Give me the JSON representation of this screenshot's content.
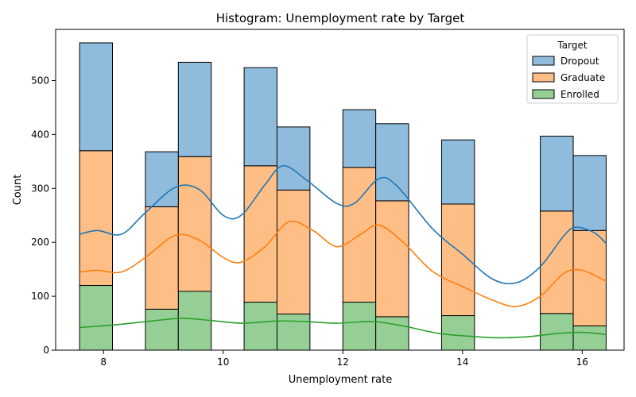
{
  "chart_data": {
    "type": "bar",
    "subtype": "stacked-histogram-with-kde",
    "title": "Histogram: Unemployment rate by Target",
    "xlabel": "Unemployment rate",
    "ylabel": "Count",
    "xlim": [
      7.2,
      16.7
    ],
    "ylim": [
      0,
      595
    ],
    "xticks": [
      8,
      10,
      12,
      14,
      16
    ],
    "yticks": [
      0,
      100,
      200,
      300,
      400,
      500
    ],
    "grid": false,
    "legend": {
      "title": "Target",
      "placement": "top-right",
      "entries": [
        "Dropout",
        "Graduate",
        "Enrolled"
      ]
    },
    "bin_edges": [
      7.6,
      8.15,
      8.7,
      9.25,
      9.8,
      10.35,
      10.9,
      11.45,
      12.0,
      12.55,
      13.1,
      13.65,
      14.2,
      14.75,
      15.3,
      15.85,
      16.4
    ],
    "series": [
      {
        "name": "Enrolled",
        "color": "#96cf96",
        "line_color": "#2ca02c",
        "values": [
          120,
          0,
          76,
          109,
          0,
          89,
          67,
          0,
          89,
          62,
          0,
          64,
          0,
          0,
          68,
          45
        ],
        "kde": [
          [
            7.6,
            42
          ],
          [
            8.2,
            47
          ],
          [
            8.8,
            54
          ],
          [
            9.3,
            59
          ],
          [
            9.8,
            55
          ],
          [
            10.3,
            50
          ],
          [
            10.9,
            54
          ],
          [
            11.4,
            53
          ],
          [
            11.9,
            50
          ],
          [
            12.5,
            53
          ],
          [
            13.0,
            45
          ],
          [
            13.6,
            31
          ],
          [
            14.1,
            26
          ],
          [
            14.6,
            23
          ],
          [
            15.1,
            25
          ],
          [
            15.6,
            31
          ],
          [
            16.0,
            33
          ],
          [
            16.4,
            29
          ]
        ]
      },
      {
        "name": "Graduate",
        "color": "#ffbe86",
        "line_color": "#ff7f0e",
        "values": [
          250,
          0,
          190,
          250,
          0,
          253,
          230,
          0,
          250,
          215,
          0,
          207,
          0,
          0,
          190,
          177
        ],
        "kde": [
          [
            7.6,
            145
          ],
          [
            7.9,
            148
          ],
          [
            8.3,
            145
          ],
          [
            8.7,
            172
          ],
          [
            9.2,
            213
          ],
          [
            9.6,
            204
          ],
          [
            10.0,
            172
          ],
          [
            10.3,
            163
          ],
          [
            10.7,
            192
          ],
          [
            11.1,
            238
          ],
          [
            11.5,
            222
          ],
          [
            11.9,
            192
          ],
          [
            12.3,
            215
          ],
          [
            12.6,
            232
          ],
          [
            13.0,
            201
          ],
          [
            13.5,
            146
          ],
          [
            14.0,
            118
          ],
          [
            14.5,
            93
          ],
          [
            14.9,
            81
          ],
          [
            15.3,
            100
          ],
          [
            15.7,
            143
          ],
          [
            16.0,
            148
          ],
          [
            16.4,
            128
          ]
        ]
      },
      {
        "name": "Dropout",
        "color": "#8fbcdc",
        "line_color": "#1f77b4",
        "values": [
          200,
          0,
          102,
          175,
          0,
          182,
          117,
          0,
          107,
          143,
          0,
          119,
          0,
          0,
          139,
          139
        ],
        "kde": [
          [
            7.6,
            215
          ],
          [
            7.9,
            222
          ],
          [
            8.3,
            215
          ],
          [
            8.7,
            255
          ],
          [
            9.2,
            302
          ],
          [
            9.6,
            298
          ],
          [
            10.0,
            250
          ],
          [
            10.3,
            250
          ],
          [
            10.7,
            307
          ],
          [
            11.0,
            342
          ],
          [
            11.4,
            315
          ],
          [
            11.9,
            272
          ],
          [
            12.2,
            273
          ],
          [
            12.6,
            318
          ],
          [
            12.9,
            305
          ],
          [
            13.5,
            225
          ],
          [
            14.0,
            178
          ],
          [
            14.5,
            132
          ],
          [
            14.9,
            125
          ],
          [
            15.3,
            155
          ],
          [
            15.7,
            213
          ],
          [
            15.9,
            228
          ],
          [
            16.2,
            218
          ],
          [
            16.4,
            198
          ]
        ]
      }
    ]
  }
}
